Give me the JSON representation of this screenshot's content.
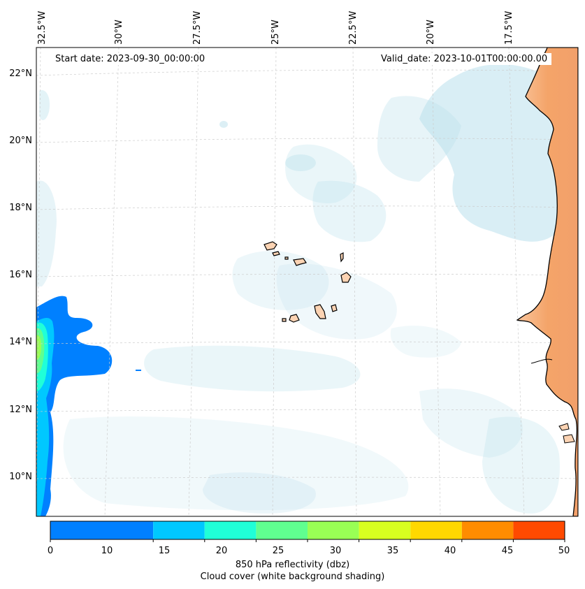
{
  "annotations": {
    "start_date": "Start date: 2023-09-30_00:00:00",
    "valid_date": "Valid_date: 2023-10-01T00:00:00.00"
  },
  "longitude_labels": [
    "32.5°W",
    "30°W",
    "27.5°W",
    "25°W",
    "22.5°W",
    "20°W",
    "17.5°W"
  ],
  "latitude_labels": [
    "22°N",
    "20°N",
    "18°N",
    "16°N",
    "14°N",
    "12°N",
    "10°N"
  ],
  "colorbar": {
    "ticks": [
      "0",
      "5",
      "10",
      "15",
      "20",
      "25",
      "30",
      "35",
      "40",
      "45",
      "50"
    ],
    "visible_tick_labels": [
      "0",
      "10",
      "15",
      "20",
      "25",
      "30",
      "35",
      "40",
      "45",
      "50"
    ],
    "label_line1": "850 hPa reflectivity (dbz)",
    "label_line2": "Cloud cover (white background shading)",
    "colors": [
      "#0080ff",
      "#00c8ff",
      "#20ffd8",
      "#60ff90",
      "#99ff55",
      "#d8ff20",
      "#ffd800",
      "#ff8c00",
      "#ff4a00"
    ]
  },
  "map": {
    "land_color": "#f4a064",
    "island_color": "#fbd3b3",
    "ocean_color": "#ffffff",
    "cloud_color": "#add8e6",
    "gridline_color": "#cccccc"
  }
}
